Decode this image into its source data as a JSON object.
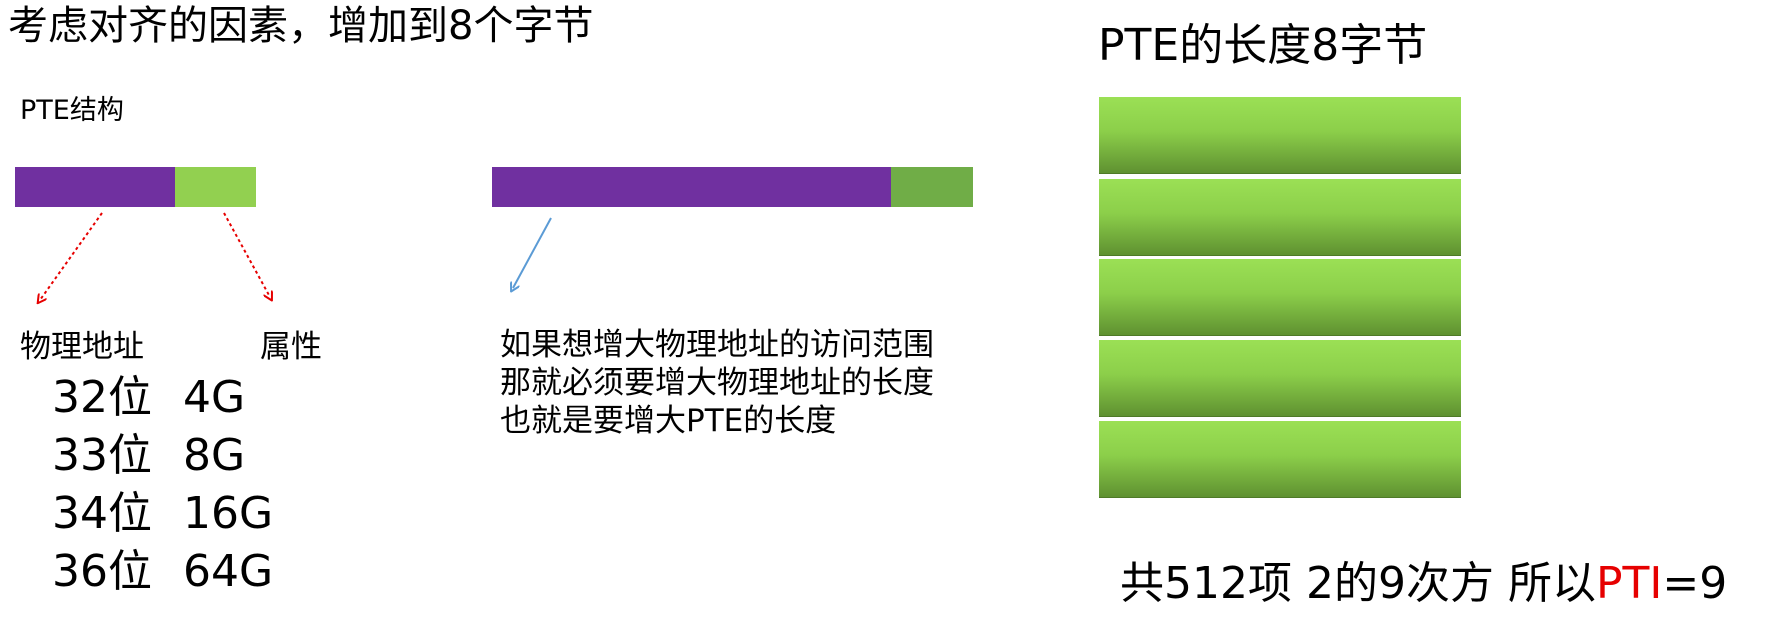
{
  "title": "考虑对齐的因素，增加到8个字节",
  "right_title": "PTE的长度8字节",
  "pte_structure_label": "PTE结构",
  "labels": {
    "physical_address": "物理地址",
    "attributes": "属性"
  },
  "bits_table": [
    {
      "bits": "32位",
      "size": "4G"
    },
    {
      "bits": "33位",
      "size": "8G"
    },
    {
      "bits": "34位",
      "size": "16G"
    },
    {
      "bits": "36位",
      "size": "64G"
    }
  ],
  "note_lines": [
    "如果想增大物理地址的访问范围",
    "那就必须要增大物理地址的长度",
    "也就是要增大PTE的长度"
  ],
  "conclusion": {
    "prefix": "共512项  2的9次方 所以",
    "pti": "PTI",
    "suffix": "=9"
  },
  "colors": {
    "address": "#7030a0",
    "attribute": "#92d050",
    "attribute_dark": "#70ad47",
    "arrow_red": "#e60000",
    "arrow_blue": "#5b9bd5",
    "pti_highlight": "#e60000"
  }
}
